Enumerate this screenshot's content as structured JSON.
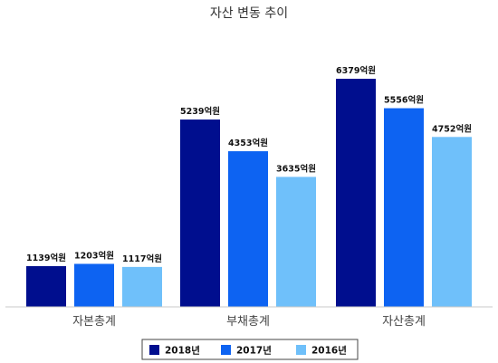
{
  "chart_data": {
    "type": "bar",
    "title": "자산 변동 추이",
    "categories": [
      "자본총계",
      "부채총계",
      "자산총계"
    ],
    "series": [
      {
        "name": "2018년",
        "color": "#000E8E",
        "values": [
          1139,
          5239,
          6379
        ],
        "labels": [
          "1139억원",
          "5239억원",
          "6379억원"
        ]
      },
      {
        "name": "2017년",
        "color": "#0D63F2",
        "values": [
          1203,
          4353,
          5556
        ],
        "labels": [
          "1203억원",
          "4353억원",
          "5556억원"
        ]
      },
      {
        "name": "2016년",
        "color": "#6FC0FA",
        "values": [
          1117,
          3635,
          4752
        ],
        "labels": [
          "1117억원",
          "3635억원",
          "4752억원"
        ]
      }
    ],
    "ylim": [
      0,
      7200
    ],
    "grid": false,
    "legend_position": "bottom"
  }
}
